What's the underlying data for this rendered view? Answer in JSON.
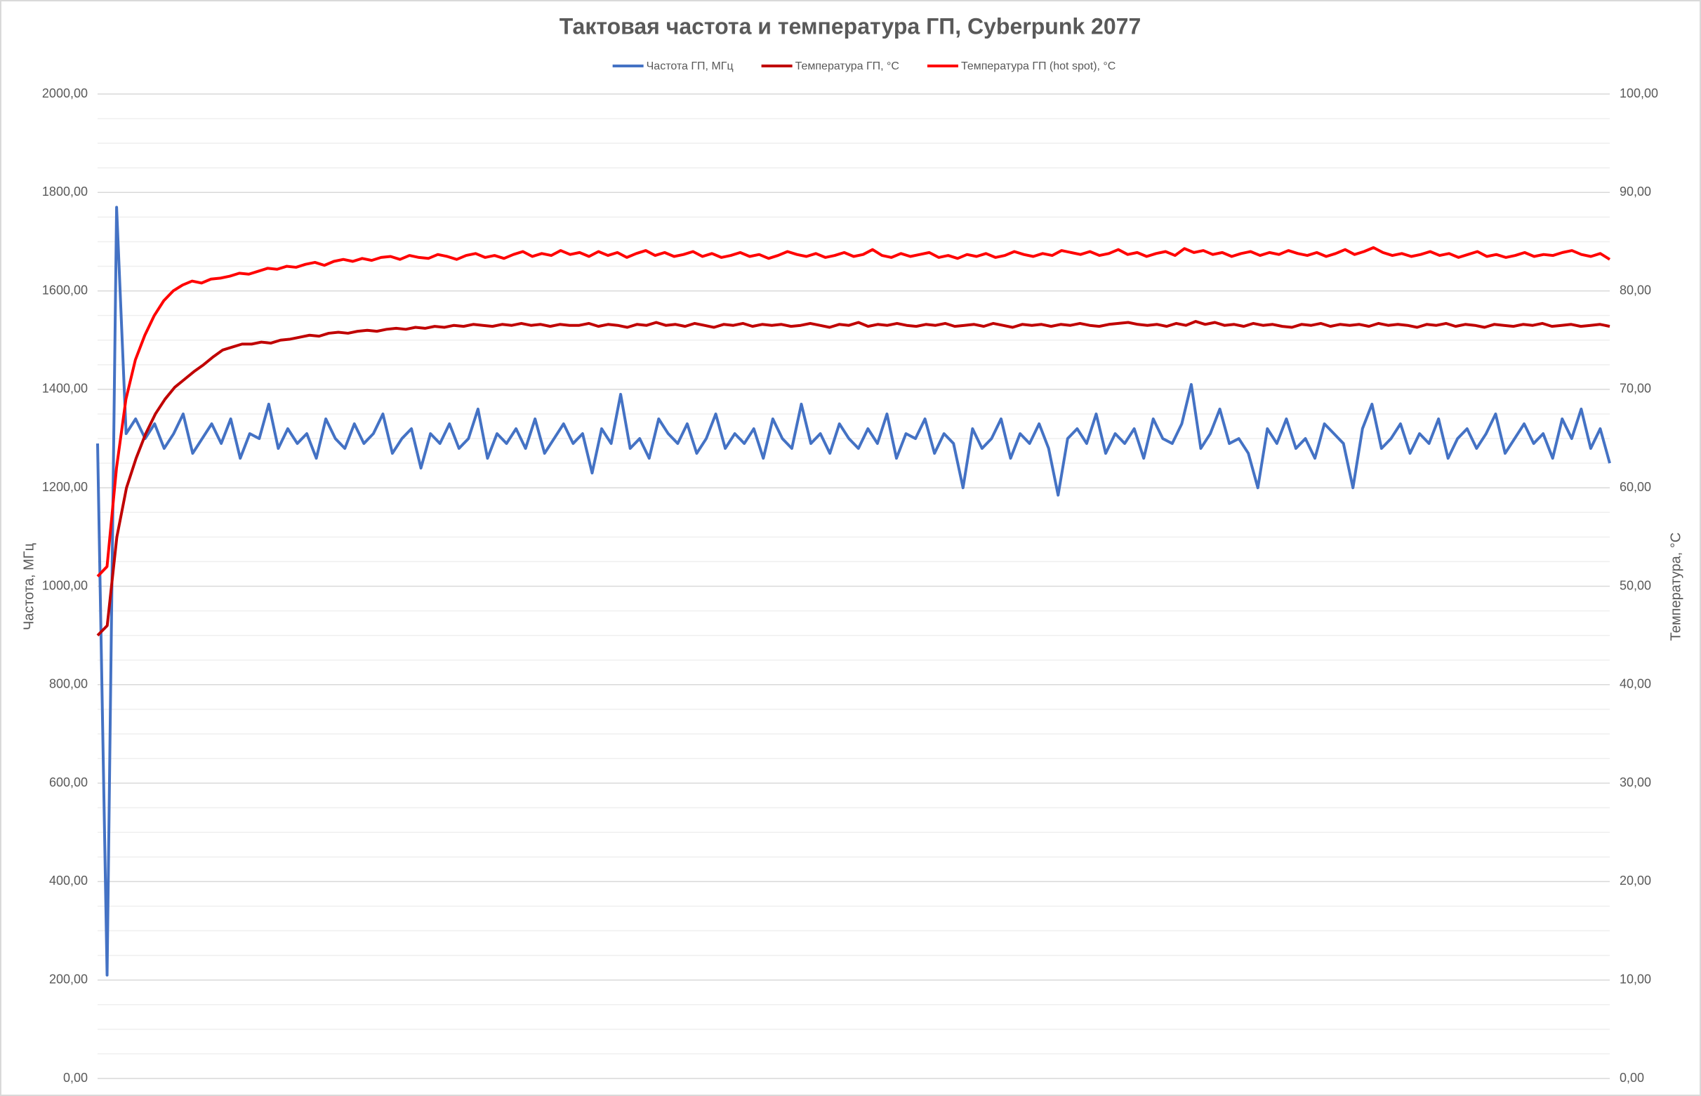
{
  "chart_data": {
    "type": "line",
    "title": "Тактовая частота и температура ГП, Cyberpunk 2077",
    "ylabel": "Частота, МГц",
    "y2label": "Температура, °C",
    "ylim": [
      0,
      2000
    ],
    "yticks": [
      {
        "value": 0,
        "label": "0,00"
      },
      {
        "value": 200,
        "label": "200,00"
      },
      {
        "value": 400,
        "label": "400,00"
      },
      {
        "value": 600,
        "label": "600,00"
      },
      {
        "value": 800,
        "label": "800,00"
      },
      {
        "value": 1000,
        "label": "1000,00"
      },
      {
        "value": 1200,
        "label": "1200,00"
      },
      {
        "value": 1400,
        "label": "1400,00"
      },
      {
        "value": 1600,
        "label": "1600,00"
      },
      {
        "value": 1800,
        "label": "1800,00"
      },
      {
        "value": 2000,
        "label": "2000,00"
      }
    ],
    "yminorticks": [
      50,
      100,
      150,
      250,
      300,
      350,
      450,
      500,
      550,
      650,
      700,
      750,
      850,
      900,
      950,
      1050,
      1100,
      1150,
      1250,
      1300,
      1350,
      1450,
      1500,
      1550,
      1650,
      1700,
      1750,
      1850,
      1900,
      1950
    ],
    "y2lim": [
      0,
      100
    ],
    "y2ticks": [
      {
        "value": 0,
        "label": "0,00"
      },
      {
        "value": 10,
        "label": "10,00"
      },
      {
        "value": 20,
        "label": "20,00"
      },
      {
        "value": 30,
        "label": "30,00"
      },
      {
        "value": 40,
        "label": "40,00"
      },
      {
        "value": 50,
        "label": "50,00"
      },
      {
        "value": 60,
        "label": "60,00"
      },
      {
        "value": 70,
        "label": "70,00"
      },
      {
        "value": 80,
        "label": "80,00"
      },
      {
        "value": 90,
        "label": "90,00"
      },
      {
        "value": 100,
        "label": "100,00"
      }
    ],
    "grid": true,
    "legend": "top",
    "series": [
      {
        "name": "Частота ГП, МГц",
        "color": "#4472c4",
        "axis": "y",
        "values": [
          1290,
          210,
          1770,
          1310,
          1340,
          1300,
          1330,
          1280,
          1310,
          1350,
          1270,
          1300,
          1330,
          1290,
          1340,
          1260,
          1310,
          1300,
          1370,
          1280,
          1320,
          1290,
          1310,
          1260,
          1340,
          1300,
          1280,
          1330,
          1290,
          1310,
          1350,
          1270,
          1300,
          1320,
          1240,
          1310,
          1290,
          1330,
          1280,
          1300,
          1360,
          1260,
          1310,
          1290,
          1320,
          1280,
          1340,
          1270,
          1300,
          1330,
          1290,
          1310,
          1230,
          1320,
          1290,
          1390,
          1280,
          1300,
          1260,
          1340,
          1310,
          1290,
          1330,
          1270,
          1300,
          1350,
          1280,
          1310,
          1290,
          1320,
          1260,
          1340,
          1300,
          1280,
          1370,
          1290,
          1310,
          1270,
          1330,
          1300,
          1280,
          1320,
          1290,
          1350,
          1260,
          1310,
          1300,
          1340,
          1270,
          1310,
          1290,
          1200,
          1320,
          1280,
          1300,
          1340,
          1260,
          1310,
          1290,
          1330,
          1280,
          1185,
          1300,
          1320,
          1290,
          1350,
          1270,
          1310,
          1290,
          1320,
          1260,
          1340,
          1300,
          1290,
          1330,
          1410,
          1280,
          1310,
          1360,
          1290,
          1300,
          1270,
          1200,
          1320,
          1290,
          1340,
          1280,
          1300,
          1260,
          1330,
          1310,
          1290,
          1200,
          1320,
          1370,
          1280,
          1300,
          1330,
          1270,
          1310,
          1290,
          1340,
          1260,
          1300,
          1320,
          1280,
          1310,
          1350,
          1270,
          1300,
          1330,
          1290,
          1310,
          1260,
          1340,
          1300,
          1360,
          1280,
          1320,
          1250
        ]
      },
      {
        "name": "Температура ГП, °C",
        "color": "#c00000",
        "axis": "y2",
        "values": [
          45,
          46,
          55,
          60,
          63,
          65.5,
          67.5,
          69,
          70.2,
          71,
          71.8,
          72.5,
          73.3,
          74,
          74.3,
          74.6,
          74.6,
          74.8,
          74.7,
          75,
          75.1,
          75.3,
          75.5,
          75.4,
          75.7,
          75.8,
          75.7,
          75.9,
          76,
          75.9,
          76.1,
          76.2,
          76.1,
          76.3,
          76.2,
          76.4,
          76.3,
          76.5,
          76.4,
          76.6,
          76.5,
          76.4,
          76.6,
          76.5,
          76.7,
          76.5,
          76.6,
          76.4,
          76.6,
          76.5,
          76.5,
          76.7,
          76.4,
          76.6,
          76.5,
          76.3,
          76.6,
          76.5,
          76.8,
          76.5,
          76.6,
          76.4,
          76.7,
          76.5,
          76.3,
          76.6,
          76.5,
          76.7,
          76.4,
          76.6,
          76.5,
          76.6,
          76.4,
          76.5,
          76.7,
          76.5,
          76.3,
          76.6,
          76.5,
          76.8,
          76.4,
          76.6,
          76.5,
          76.7,
          76.5,
          76.4,
          76.6,
          76.5,
          76.7,
          76.4,
          76.5,
          76.6,
          76.4,
          76.7,
          76.5,
          76.3,
          76.6,
          76.5,
          76.6,
          76.4,
          76.6,
          76.5,
          76.7,
          76.5,
          76.4,
          76.6,
          76.7,
          76.8,
          76.6,
          76.5,
          76.6,
          76.4,
          76.7,
          76.5,
          76.9,
          76.6,
          76.8,
          76.5,
          76.6,
          76.4,
          76.7,
          76.5,
          76.6,
          76.4,
          76.3,
          76.6,
          76.5,
          76.7,
          76.4,
          76.6,
          76.5,
          76.6,
          76.4,
          76.7,
          76.5,
          76.6,
          76.5,
          76.3,
          76.6,
          76.5,
          76.7,
          76.4,
          76.6,
          76.5,
          76.3,
          76.6,
          76.5,
          76.4,
          76.6,
          76.5,
          76.7,
          76.4,
          76.5,
          76.6,
          76.4,
          76.5,
          76.6,
          76.4
        ]
      },
      {
        "name": "Температура ГП (hot spot), °C",
        "color": "#ff0000",
        "axis": "y2",
        "values": [
          51,
          52,
          62,
          69,
          73,
          75.5,
          77.5,
          79,
          80,
          80.6,
          81,
          80.8,
          81.2,
          81.3,
          81.5,
          81.8,
          81.7,
          82,
          82.3,
          82.2,
          82.5,
          82.4,
          82.7,
          82.9,
          82.6,
          83,
          83.2,
          83,
          83.3,
          83.1,
          83.4,
          83.5,
          83.2,
          83.6,
          83.4,
          83.3,
          83.7,
          83.5,
          83.2,
          83.6,
          83.8,
          83.4,
          83.6,
          83.3,
          83.7,
          84,
          83.5,
          83.8,
          83.6,
          84.1,
          83.7,
          83.9,
          83.5,
          84.0,
          83.6,
          83.9,
          83.4,
          83.8,
          84.1,
          83.6,
          83.9,
          83.5,
          83.7,
          84.0,
          83.5,
          83.8,
          83.4,
          83.6,
          83.9,
          83.5,
          83.7,
          83.3,
          83.6,
          84.0,
          83.7,
          83.5,
          83.8,
          83.4,
          83.6,
          83.9,
          83.5,
          83.7,
          84.2,
          83.6,
          83.4,
          83.8,
          83.5,
          83.7,
          83.9,
          83.4,
          83.6,
          83.3,
          83.7,
          83.5,
          83.8,
          83.4,
          83.6,
          84.0,
          83.7,
          83.5,
          83.8,
          83.6,
          84.1,
          83.9,
          83.7,
          84.0,
          83.6,
          83.8,
          84.2,
          83.7,
          83.9,
          83.5,
          83.8,
          84.0,
          83.6,
          84.3,
          83.9,
          84.1,
          83.7,
          83.9,
          83.5,
          83.8,
          84.0,
          83.6,
          83.9,
          83.7,
          84.1,
          83.8,
          83.6,
          83.9,
          83.5,
          83.8,
          84.2,
          83.7,
          84.0,
          84.4,
          83.9,
          83.6,
          83.8,
          83.5,
          83.7,
          84.0,
          83.6,
          83.8,
          83.4,
          83.7,
          84.0,
          83.5,
          83.7,
          83.4,
          83.6,
          83.9,
          83.5,
          83.7,
          83.6,
          83.9,
          84.1,
          83.7,
          83.5,
          83.8,
          83.2
        ]
      }
    ]
  }
}
